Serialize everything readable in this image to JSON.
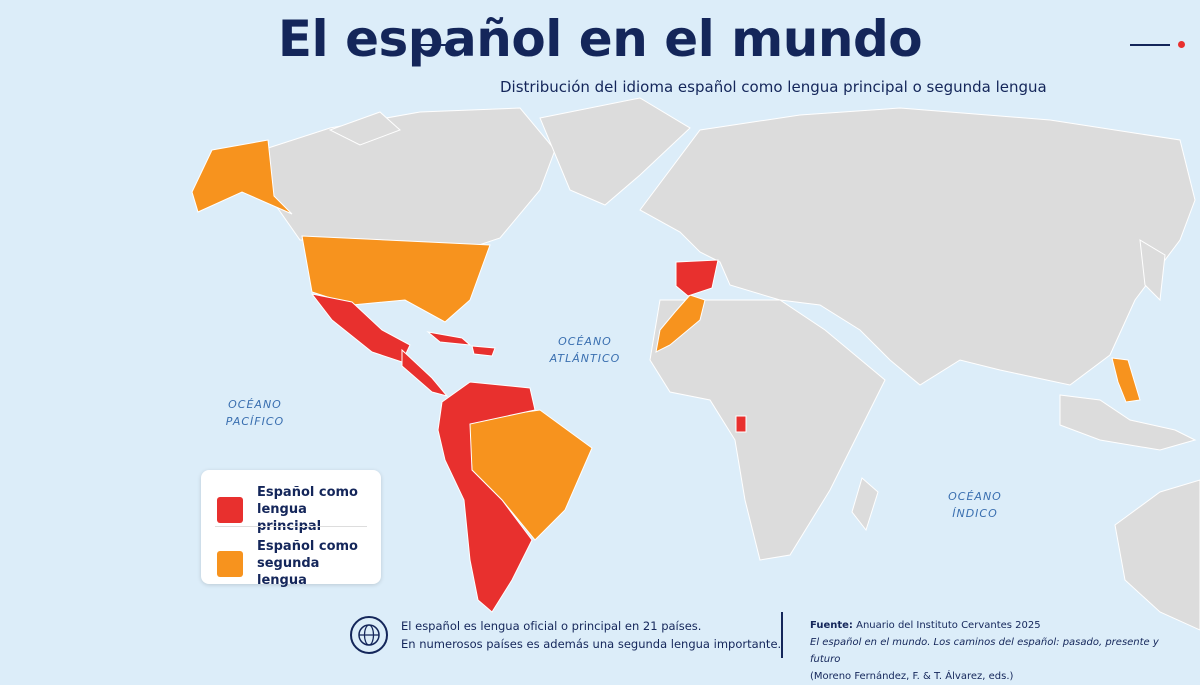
{
  "header": {
    "title": "El español en el mundo",
    "subtitle": "Distribución del idioma español como lengua principal o segunda lengua"
  },
  "map": {
    "oceans": [
      {
        "lines": [
          "OCÉANO",
          "ATLÁNTICO"
        ]
      },
      {
        "lines": [
          "OCÉANO",
          "PACÍFICO"
        ]
      },
      {
        "lines": [
          "OCÉANO",
          "ÍNDICO"
        ]
      }
    ]
  },
  "legend": [
    {
      "label": "Español como lengua principal",
      "color": "#e8302e"
    },
    {
      "label": "Español como segunda lengua",
      "color": "#f7931e"
    }
  ],
  "footer": {
    "note": [
      "El español es lengua oficial o principal en 21 países.",
      "En numerosos países es además una segunda lengua importante."
    ],
    "source_label": "Fuente:",
    "source": "Anuario del Instituto Cervantes 2025",
    "work": "El español en el mundo. Los caminos del español: pasado, presente y futuro",
    "authors": "(Moreno Fernández, F. & T. Álvarez, eds.)"
  }
}
